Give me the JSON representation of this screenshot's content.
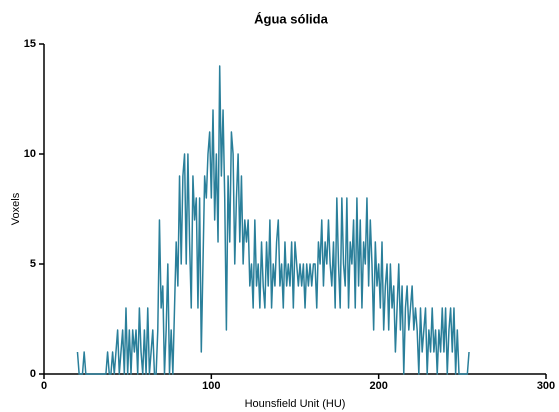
{
  "chart_data": {
    "type": "line",
    "title": "Água sólida",
    "x_label": "Hounsfield Unit (HU)",
    "y_label": "Voxels",
    "color": "#2a7f9a",
    "xlim": [
      0,
      300
    ],
    "xticks": [
      0,
      100,
      200,
      300
    ],
    "ylim": [
      0,
      15
    ],
    "yticks": [
      0,
      5,
      10,
      15
    ],
    "x": [
      20,
      21,
      22,
      23,
      24,
      25,
      26,
      27,
      28,
      29,
      30,
      31,
      32,
      33,
      34,
      35,
      36,
      37,
      38,
      39,
      40,
      41,
      42,
      43,
      44,
      45,
      46,
      47,
      48,
      49,
      50,
      51,
      52,
      53,
      54,
      55,
      56,
      57,
      58,
      59,
      60,
      61,
      62,
      63,
      64,
      65,
      66,
      67,
      68,
      69,
      70,
      71,
      72,
      73,
      74,
      75,
      76,
      77,
      78,
      79,
      80,
      81,
      82,
      83,
      84,
      85,
      86,
      87,
      88,
      89,
      90,
      91,
      92,
      93,
      94,
      95,
      96,
      97,
      98,
      99,
      100,
      101,
      102,
      103,
      104,
      105,
      106,
      107,
      108,
      109,
      110,
      111,
      112,
      113,
      114,
      115,
      116,
      117,
      118,
      119,
      120,
      121,
      122,
      123,
      124,
      125,
      126,
      127,
      128,
      129,
      130,
      131,
      132,
      133,
      134,
      135,
      136,
      137,
      138,
      139,
      140,
      141,
      142,
      143,
      144,
      145,
      146,
      147,
      148,
      149,
      150,
      151,
      152,
      153,
      154,
      155,
      156,
      157,
      158,
      159,
      160,
      161,
      162,
      163,
      164,
      165,
      166,
      167,
      168,
      169,
      170,
      171,
      172,
      173,
      174,
      175,
      176,
      177,
      178,
      179,
      180,
      181,
      182,
      183,
      184,
      185,
      186,
      187,
      188,
      189,
      190,
      191,
      192,
      193,
      194,
      195,
      196,
      197,
      198,
      199,
      200,
      201,
      202,
      203,
      204,
      205,
      206,
      207,
      208,
      209,
      210,
      211,
      212,
      213,
      214,
      215,
      216,
      217,
      218,
      219,
      220,
      221,
      222,
      223,
      224,
      225,
      226,
      227,
      228,
      229,
      230,
      231,
      232,
      233,
      234,
      235,
      236,
      237,
      238,
      239,
      240,
      241,
      242,
      243,
      244,
      245,
      246,
      247,
      248,
      249,
      250,
      251,
      252,
      253,
      254
    ],
    "values": [
      1,
      0,
      0,
      0,
      1,
      0,
      0,
      0,
      0,
      0,
      0,
      0,
      0,
      0,
      0,
      0,
      0,
      0,
      1,
      0,
      0,
      1,
      0,
      1,
      2,
      0,
      1,
      2,
      0,
      3,
      0,
      2,
      0,
      2,
      1,
      2,
      0,
      3,
      1,
      0,
      2,
      0,
      3,
      0,
      1,
      2,
      0,
      0,
      2,
      7,
      3,
      4,
      0,
      2,
      5,
      0,
      2,
      0,
      3,
      6,
      4,
      9,
      5,
      9,
      10,
      5,
      10,
      6,
      3,
      9,
      7,
      8,
      3,
      8,
      1,
      5,
      9,
      8,
      10,
      11,
      8,
      12,
      7,
      10,
      6,
      14,
      9,
      12,
      8,
      2,
      9,
      6,
      11,
      10,
      5,
      8,
      10,
      6,
      9,
      5,
      7,
      6,
      7,
      4,
      5,
      3,
      7,
      4,
      5,
      3,
      6,
      4,
      3,
      6,
      4,
      7,
      3,
      5,
      4,
      6,
      7,
      4,
      5,
      3,
      6,
      4,
      5,
      4,
      6,
      3,
      6,
      5,
      4,
      5,
      4,
      5,
      3,
      5,
      4,
      5,
      4,
      5,
      5,
      3,
      6,
      5,
      7,
      4,
      6,
      5,
      7,
      5,
      4,
      6,
      3,
      8,
      5,
      3,
      8,
      5,
      4,
      8,
      3,
      6,
      5,
      7,
      3,
      8,
      4,
      7,
      3,
      6,
      5,
      8,
      4,
      7,
      5,
      2,
      6,
      4,
      5,
      3,
      6,
      2,
      4,
      5,
      2,
      5,
      3,
      4,
      1,
      3,
      5,
      2,
      4,
      0,
      3,
      4,
      2,
      3,
      4,
      2,
      3,
      2,
      0,
      3,
      1,
      2,
      3,
      0,
      2,
      1,
      3,
      1,
      2,
      0,
      2,
      1,
      3,
      1,
      3,
      0,
      2,
      3,
      1,
      3,
      0,
      2,
      0,
      0,
      0,
      0,
      0,
      0,
      1
    ]
  }
}
